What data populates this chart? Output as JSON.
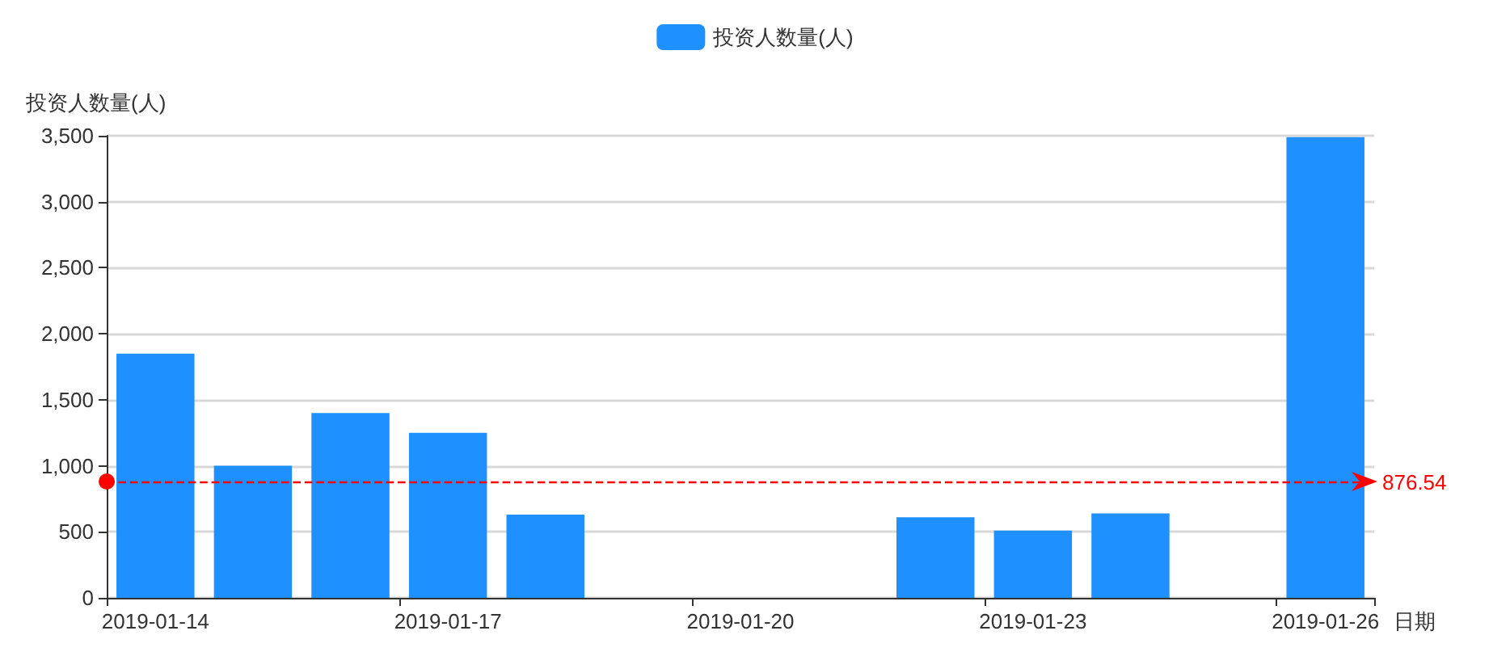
{
  "chart_data": {
    "type": "bar",
    "ylabel": "投资人数量(人)",
    "xlabel": "日期",
    "categories": [
      "2019-01-14",
      null,
      null,
      "2019-01-17",
      null,
      null,
      "2019-01-20",
      null,
      null,
      "2019-01-23",
      null,
      null,
      "2019-01-26"
    ],
    "series": [
      {
        "name": "投资人数量(人)",
        "color": "#1e90ff",
        "values": [
          1850,
          1000,
          1400,
          1250,
          630,
          0,
          0,
          0,
          610,
          510,
          640,
          0,
          3490
        ]
      }
    ],
    "ylim": [
      0,
      3500
    ],
    "yticks": [
      0,
      500,
      {
        "value": 1000,
        "label": "1,000"
      },
      {
        "value": 1500,
        "label": "1,500"
      },
      {
        "value": 2000,
        "label": "2,000"
      },
      {
        "value": 2500,
        "label": "2,500"
      },
      {
        "value": 3000,
        "label": "3,000"
      },
      {
        "value": 3500,
        "label": "3,500"
      }
    ],
    "ref_lines": [
      {
        "axis": "y",
        "value": 876.54,
        "label": "876.54",
        "color": "#ff0000",
        "line_style": "dashed"
      }
    ],
    "grid": "y",
    "legend": "top"
  }
}
